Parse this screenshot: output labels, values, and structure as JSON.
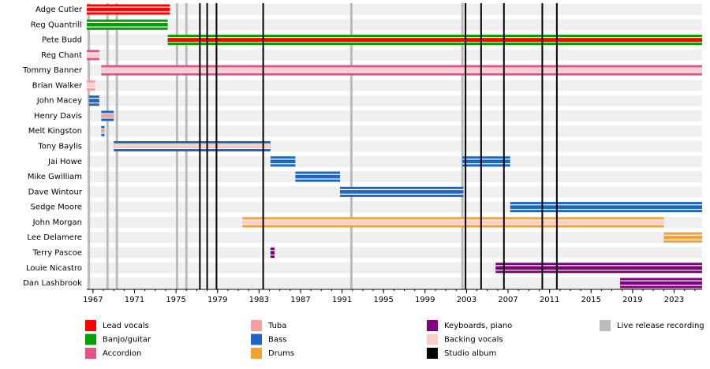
{
  "chart_data": {
    "type": "timeline",
    "xlim": [
      1966.4,
      2025.7
    ],
    "xticks": [
      1967,
      1971,
      1975,
      1979,
      1983,
      1987,
      1991,
      1995,
      1999,
      2003,
      2007,
      2011,
      2015,
      2019,
      2023
    ],
    "grid": true,
    "roles": [
      {
        "name": "Lead vocals",
        "color": "#ff0000"
      },
      {
        "name": "Banjo/guitar",
        "color": "#00a000"
      },
      {
        "name": "Accordion",
        "color": "#e8528a"
      },
      {
        "name": "Tuba",
        "color": "#f4a0a0"
      },
      {
        "name": "Bass",
        "color": "#1e66c2"
      },
      {
        "name": "Drums",
        "color": "#f5a030"
      },
      {
        "name": "Keyboards, piano",
        "color": "#800080"
      },
      {
        "name": "Backing vocals",
        "color": "#ffcccc"
      }
    ],
    "studio_album": {
      "name": "Studio album",
      "color": "#000000",
      "years": [
        1977.3,
        1978.0,
        1978.9,
        1983.4,
        2002.9,
        2004.4,
        2006.6,
        2010.3,
        2011.7
      ]
    },
    "live_recording": {
      "name": "Live release recording",
      "color": "#bbbbbb",
      "years": [
        1966.6,
        1968.4,
        1969.3,
        1975.1,
        1976.0,
        1991.9,
        2002.6
      ]
    },
    "members": [
      {
        "name": "Adge Cutler",
        "bars": [
          {
            "role": 0,
            "start": 1966.4,
            "end": 1974.4
          }
        ]
      },
      {
        "name": "Reg Quantrill",
        "bars": [
          {
            "role": 1,
            "start": 1966.4,
            "end": 1974.2
          }
        ]
      },
      {
        "name": "Pete Budd",
        "bars": [
          {
            "role": 1,
            "stripe": 0,
            "start": 1974.2,
            "end": 2025.7
          }
        ]
      },
      {
        "name": "Reg Chant",
        "bars": [
          {
            "role": 2,
            "stripe": 7,
            "start": 1966.4,
            "end": 1967.6
          }
        ]
      },
      {
        "name": "Tommy Banner",
        "bars": [
          {
            "role": 2,
            "stripe": 7,
            "start": 1967.8,
            "end": 2025.7
          }
        ]
      },
      {
        "name": "Brian Walker",
        "bars": [
          {
            "role": 3,
            "stripe": 7,
            "start": 1966.4,
            "end": 1967.2
          }
        ]
      },
      {
        "name": "John Macey",
        "bars": [
          {
            "role": 4,
            "start": 1966.6,
            "end": 1967.6
          }
        ]
      },
      {
        "name": "Henry Davis",
        "bars": [
          {
            "role": 4,
            "stripe": 3,
            "start": 1967.8,
            "end": 1969.0
          }
        ]
      },
      {
        "name": "Melt Kingston",
        "bars": [
          {
            "role": 4,
            "stripe": 3,
            "start": 1967.8,
            "end": 1968.1
          }
        ]
      },
      {
        "name": "Tony Baylis",
        "bars": [
          {
            "role": 4,
            "stripe": 7,
            "start": 1969.0,
            "end": 1984.1
          }
        ]
      },
      {
        "name": "Jai Howe",
        "bars": [
          {
            "role": 4,
            "start": 1984.1,
            "end": 1986.5
          },
          {
            "role": 4,
            "start": 2002.6,
            "end": 2007.2
          }
        ]
      },
      {
        "name": "Mike Gwilliam",
        "bars": [
          {
            "role": 4,
            "start": 1986.5,
            "end": 1990.8
          }
        ]
      },
      {
        "name": "Dave Wintour",
        "bars": [
          {
            "role": 4,
            "start": 1990.8,
            "end": 2002.7
          }
        ]
      },
      {
        "name": "Sedge Moore",
        "bars": [
          {
            "role": 4,
            "start": 2007.2,
            "end": 2025.7
          }
        ]
      },
      {
        "name": "John Morgan",
        "bars": [
          {
            "role": 5,
            "stripe": 7,
            "start": 1981.4,
            "end": 2022.0
          }
        ]
      },
      {
        "name": "Lee Delamere",
        "bars": [
          {
            "role": 5,
            "start": 2022.0,
            "end": 2025.7
          }
        ]
      },
      {
        "name": "Terry Pascoe",
        "bars": [
          {
            "role": 6,
            "start": 1984.1,
            "end": 1984.5
          }
        ]
      },
      {
        "name": "Louie Nicastro",
        "bars": [
          {
            "role": 6,
            "start": 2005.8,
            "end": 2025.7
          }
        ]
      },
      {
        "name": "Dan Lashbrook",
        "bars": [
          {
            "role": 6,
            "start": 2017.8,
            "end": 2025.7
          }
        ]
      }
    ]
  }
}
